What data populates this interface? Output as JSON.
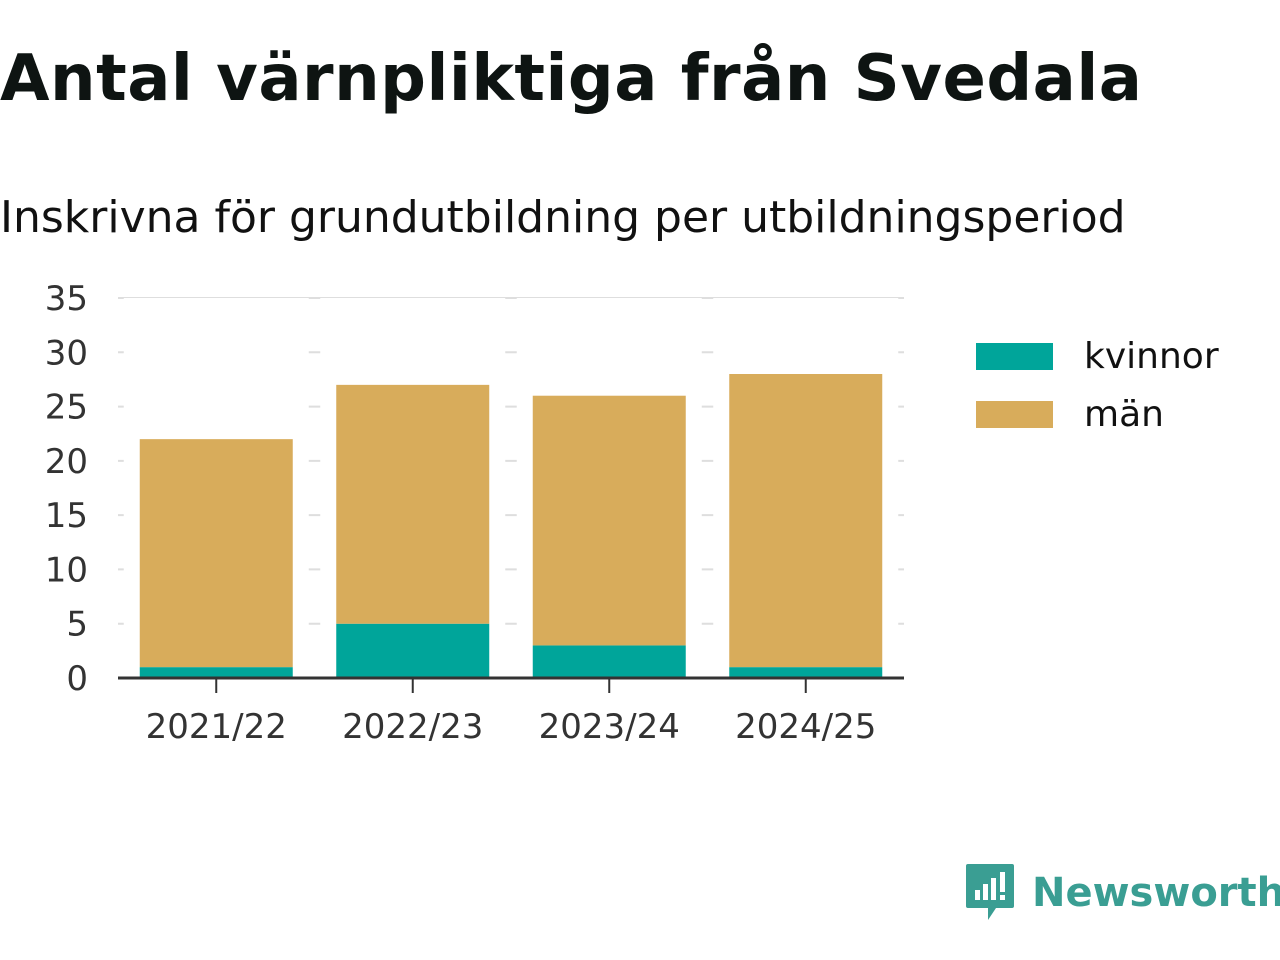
{
  "header": {
    "title": "Antal värnpliktiga från Svedala",
    "subtitle": "Inskrivna för grundutbildning per utbildningsperiod"
  },
  "legend": {
    "items": [
      {
        "label": "kvinnor",
        "color": "#00a59a"
      },
      {
        "label": "män",
        "color": "#d8ac5b"
      }
    ]
  },
  "branding": {
    "name": "Newsworthy",
    "logo_icon": "newsworthy-chart-bubble-icon",
    "color": "#3a9e93"
  },
  "chart_data": {
    "type": "bar",
    "stacked": true,
    "categories": [
      "2021/22",
      "2022/23",
      "2023/24",
      "2024/25"
    ],
    "series": [
      {
        "name": "kvinnor",
        "values": [
          1,
          5,
          3,
          1
        ],
        "color": "#00a59a"
      },
      {
        "name": "män",
        "values": [
          21,
          22,
          23,
          27
        ],
        "color": "#d8ac5b"
      }
    ],
    "yticks": [
      "0",
      "5",
      "10",
      "15",
      "20",
      "25",
      "30",
      "35"
    ],
    "ylim": [
      0,
      35
    ],
    "grid": true,
    "legend_position": "right"
  }
}
